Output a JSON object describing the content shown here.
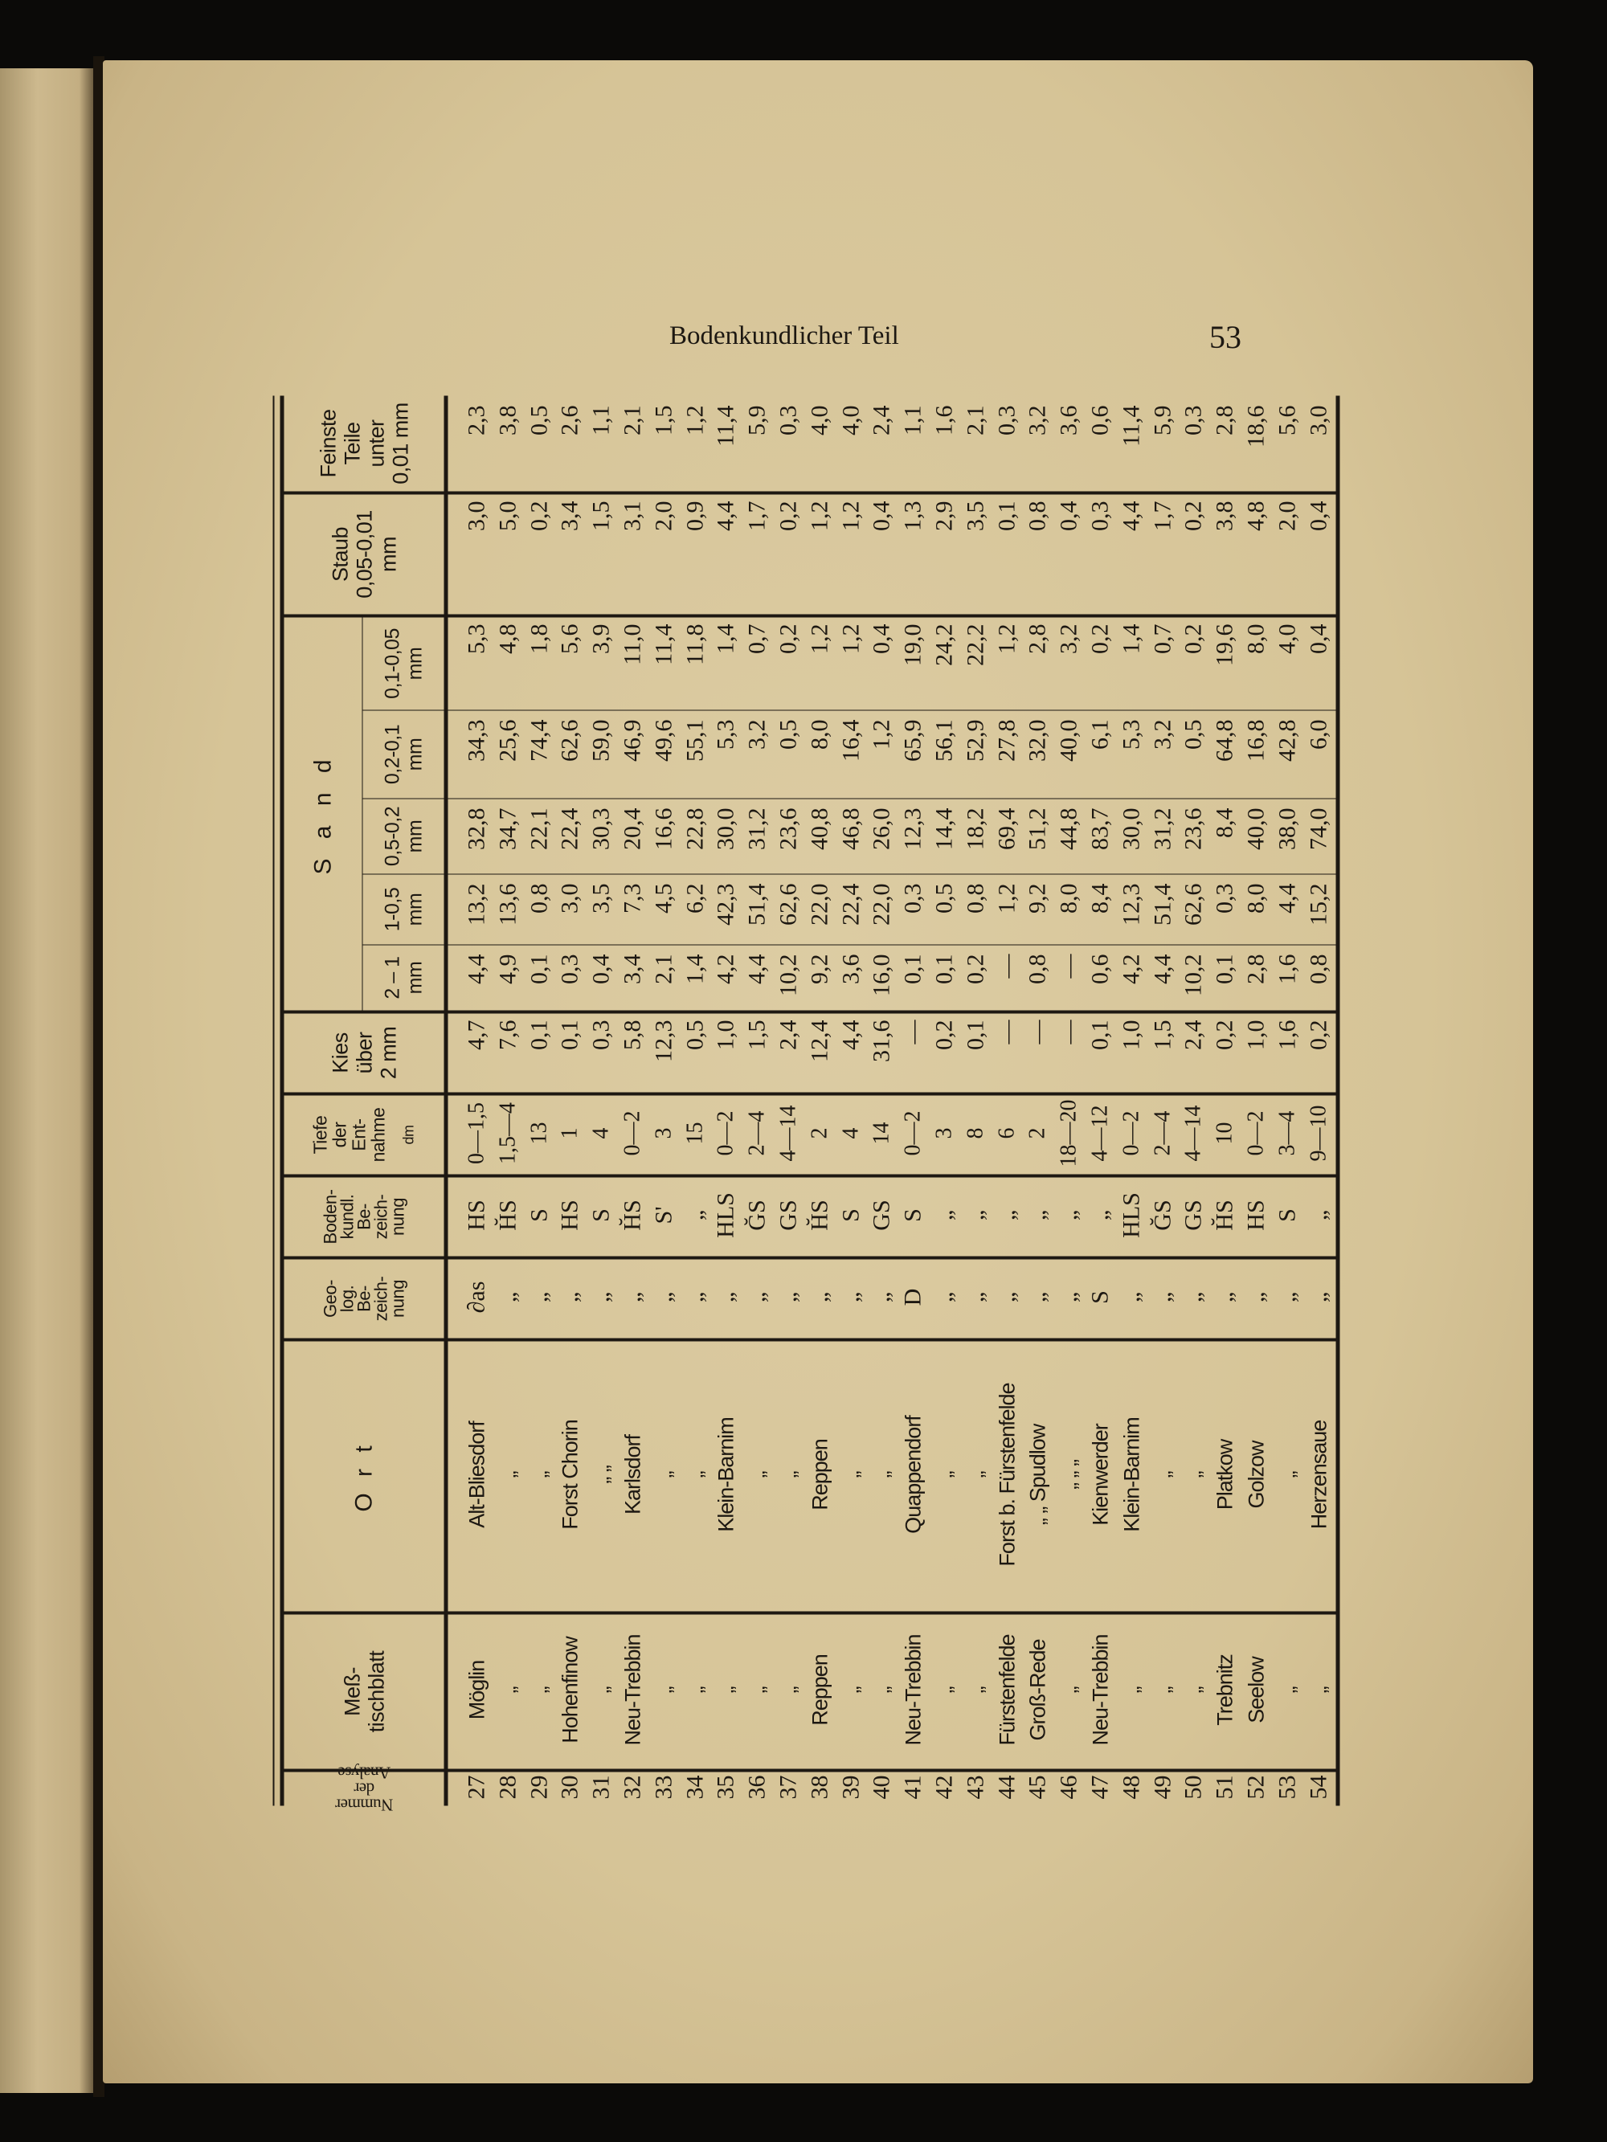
{
  "running_head": "Bodenkundlicher Teil",
  "page_number": "53",
  "table": {
    "headers": {
      "nummer": "Nummer\nder Analyse",
      "blatt": "Meß-\ntischblatt",
      "ort": "O r t",
      "geolog": "Geo-\nlog.\nBe-\nzeich-\nnung",
      "boden": "Boden-\nkundl.\nBe-\nzeich-\nnung",
      "tiefe": "Tiefe\nder\nEnt-\nnahme",
      "tiefe_unit": "dm",
      "kies": "Kies\nüber\n2 mm",
      "sand": "S a n d",
      "sand_sub": [
        "2 – 1\nmm",
        "1-0,5\nmm",
        "0,5-0,2\nmm",
        "0,2-0,1\nmm",
        "0,1-0,05\nmm"
      ],
      "staub": "Staub\n0,05-0,01\nmm",
      "feinste": "Feinste\nTeile\nunter\n0,01 mm"
    },
    "rows": [
      {
        "nr": "27",
        "blatt": "Möglin",
        "ort": "Alt-Bliesdorf",
        "geo": "∂as",
        "boden": "HS",
        "tiefe": "0—1,5",
        "kies": "4,7",
        "s1": "4,4",
        "s2": "13,2",
        "s3": "32,8",
        "s4": "34,3",
        "s5": "5,3",
        "staub": "3,0",
        "feinste": "2,3"
      },
      {
        "nr": "28",
        "blatt": "„",
        "ort": "„",
        "geo": "„",
        "boden": "H̆S",
        "tiefe": "1,5—4",
        "kies": "7,6",
        "s1": "4,9",
        "s2": "13,6",
        "s3": "34,7",
        "s4": "25,6",
        "s5": "4,8",
        "staub": "5,0",
        "feinste": "3,8"
      },
      {
        "nr": "29",
        "blatt": "„",
        "ort": "„",
        "geo": "„",
        "boden": "S",
        "tiefe": "13",
        "kies": "0,1",
        "s1": "0,1",
        "s2": "0,8",
        "s3": "22,1",
        "s4": "74,4",
        "s5": "1,8",
        "staub": "0,2",
        "feinste": "0,5"
      },
      {
        "nr": "30",
        "blatt": "Hohenfinow",
        "ort": "Forst Chorin",
        "geo": "„",
        "boden": "HS",
        "tiefe": "1",
        "kies": "0,1",
        "s1": "0,3",
        "s2": "3,0",
        "s3": "22,4",
        "s4": "62,6",
        "s5": "5,6",
        "staub": "3,4",
        "feinste": "2,6"
      },
      {
        "nr": "31",
        "blatt": "„",
        "ort": "„  „",
        "geo": "„",
        "boden": "S",
        "tiefe": "4",
        "kies": "0,3",
        "s1": "0,4",
        "s2": "3,5",
        "s3": "30,3",
        "s4": "59,0",
        "s5": "3,9",
        "staub": "1,5",
        "feinste": "1,1"
      },
      {
        "nr": "32",
        "blatt": "Neu-Trebbin",
        "ort": "Karlsdorf",
        "geo": "„",
        "boden": "H̆S",
        "tiefe": "0—2",
        "kies": "5,8",
        "s1": "3,4",
        "s2": "7,3",
        "s3": "20,4",
        "s4": "46,9",
        "s5": "11,0",
        "staub": "3,1",
        "feinste": "2,1"
      },
      {
        "nr": "33",
        "blatt": "„",
        "ort": "„",
        "geo": "„",
        "boden": "S'",
        "tiefe": "3",
        "kies": "12,3",
        "s1": "2,1",
        "s2": "4,5",
        "s3": "16,6",
        "s4": "49,6",
        "s5": "11,4",
        "staub": "2,0",
        "feinste": "1,5"
      },
      {
        "nr": "34",
        "blatt": "„",
        "ort": "„",
        "geo": "„",
        "boden": "„",
        "tiefe": "15",
        "kies": "0,5",
        "s1": "1,4",
        "s2": "6,2",
        "s3": "22,8",
        "s4": "55,1",
        "s5": "11,8",
        "staub": "0,9",
        "feinste": "1,2"
      },
      {
        "nr": "35",
        "blatt": "„",
        "ort": "Klein-Barnim",
        "geo": "„",
        "boden": "HLS",
        "tiefe": "0—2",
        "kies": "1,0",
        "s1": "4,2",
        "s2": "42,3",
        "s3": "30,0",
        "s4": "5,3",
        "s5": "1,4",
        "staub": "4,4",
        "feinste": "11,4"
      },
      {
        "nr": "36",
        "blatt": "„",
        "ort": "„",
        "geo": "„",
        "boden": "ĞS",
        "tiefe": "2—4",
        "kies": "1,5",
        "s1": "4,4",
        "s2": "51,4",
        "s3": "31,2",
        "s4": "3,2",
        "s5": "0,7",
        "staub": "1,7",
        "feinste": "5,9"
      },
      {
        "nr": "37",
        "blatt": "„",
        "ort": "„",
        "geo": "„",
        "boden": "GS",
        "tiefe": "4—14",
        "kies": "2,4",
        "s1": "10,2",
        "s2": "62,6",
        "s3": "23,6",
        "s4": "0,5",
        "s5": "0,2",
        "staub": "0,2",
        "feinste": "0,3"
      },
      {
        "nr": "38",
        "blatt": "Reppen",
        "ort": "Reppen",
        "geo": "„",
        "boden": "H̆S",
        "tiefe": "2",
        "kies": "12,4",
        "s1": "9,2",
        "s2": "22,0",
        "s3": "40,8",
        "s4": "8,0",
        "s5": "1,2",
        "staub": "1,2",
        "feinste": "4,0"
      },
      {
        "nr": "39",
        "blatt": "„",
        "ort": "„",
        "geo": "„",
        "boden": "S",
        "tiefe": "4",
        "kies": "4,4",
        "s1": "3,6",
        "s2": "22,4",
        "s3": "46,8",
        "s4": "16,4",
        "s5": "1,2",
        "staub": "1,2",
        "feinste": "4,0"
      },
      {
        "nr": "40",
        "blatt": "„",
        "ort": "„",
        "geo": "„",
        "boden": "GS",
        "tiefe": "14",
        "kies": "31,6",
        "s1": "16,0",
        "s2": "22,0",
        "s3": "26,0",
        "s4": "1,2",
        "s5": "0,4",
        "staub": "0,4",
        "feinste": "2,4"
      },
      {
        "nr": "41",
        "blatt": "Neu-Trebbin",
        "ort": "Quappendorf",
        "geo": "D",
        "boden": "S",
        "tiefe": "0—2",
        "kies": "—",
        "s1": "0,1",
        "s2": "0,3",
        "s3": "12,3",
        "s4": "65,9",
        "s5": "19,0",
        "staub": "1,3",
        "feinste": "1,1"
      },
      {
        "nr": "42",
        "blatt": "„",
        "ort": "„",
        "geo": "„",
        "boden": "„",
        "tiefe": "3",
        "kies": "0,2",
        "s1": "0,1",
        "s2": "0,5",
        "s3": "14,4",
        "s4": "56,1",
        "s5": "24,2",
        "staub": "2,9",
        "feinste": "1,6"
      },
      {
        "nr": "43",
        "blatt": "„",
        "ort": "„",
        "geo": "„",
        "boden": "„",
        "tiefe": "8",
        "kies": "0,1",
        "s1": "0,2",
        "s2": "0,8",
        "s3": "18,2",
        "s4": "52,9",
        "s5": "22,2",
        "staub": "3,5",
        "feinste": "2,1"
      },
      {
        "nr": "44",
        "blatt": "Fürstenfelde",
        "ort": "Forst b. Fürstenfelde",
        "geo": "„",
        "boden": "„",
        "tiefe": "6",
        "kies": "—",
        "s1": "—",
        "s2": "1,2",
        "s3": "69,4",
        "s4": "27,8",
        "s5": "1,2",
        "staub": "0,1",
        "feinste": "0,3"
      },
      {
        "nr": "45",
        "blatt": "Groß-Rede",
        "ort": "„  „  Spudlow",
        "geo": "„",
        "boden": "„",
        "tiefe": "2",
        "kies": "—",
        "s1": "0,8",
        "s2": "9,2",
        "s3": "51,2",
        "s4": "32,0",
        "s5": "2,8",
        "staub": "0,8",
        "feinste": "3,2"
      },
      {
        "nr": "46",
        "blatt": "„",
        "ort": "„  „  „",
        "geo": "„",
        "boden": "„",
        "tiefe": "18—20",
        "kies": "—",
        "s1": "—",
        "s2": "8,0",
        "s3": "44,8",
        "s4": "40,0",
        "s5": "3,2",
        "staub": "0,4",
        "feinste": "3,6"
      },
      {
        "nr": "47",
        "blatt": "Neu-Trebbin",
        "ort": "Kienwerder",
        "geo": "S",
        "boden": "„",
        "tiefe": "4—12",
        "kies": "0,1",
        "s1": "0,6",
        "s2": "8,4",
        "s3": "83,7",
        "s4": "6,1",
        "s5": "0,2",
        "staub": "0,3",
        "feinste": "0,6"
      },
      {
        "nr": "48",
        "blatt": "„",
        "ort": "Klein-Barnim",
        "geo": "„",
        "boden": "HLS",
        "tiefe": "0—2",
        "kies": "1,0",
        "s1": "4,2",
        "s2": "12,3",
        "s3": "30,0",
        "s4": "5,3",
        "s5": "1,4",
        "staub": "4,4",
        "feinste": "11,4"
      },
      {
        "nr": "49",
        "blatt": "„",
        "ort": "„",
        "geo": "„",
        "boden": "ĞS",
        "tiefe": "2—4",
        "kies": "1,5",
        "s1": "4,4",
        "s2": "51,4",
        "s3": "31,2",
        "s4": "3,2",
        "s5": "0,7",
        "staub": "1,7",
        "feinste": "5,9"
      },
      {
        "nr": "50",
        "blatt": "„",
        "ort": "„",
        "geo": "„",
        "boden": "GS",
        "tiefe": "4—14",
        "kies": "2,4",
        "s1": "10,2",
        "s2": "62,6",
        "s3": "23,6",
        "s4": "0,5",
        "s5": "0,2",
        "staub": "0,2",
        "feinste": "0,3"
      },
      {
        "nr": "51",
        "blatt": "Trebnitz",
        "ort": "Platkow",
        "geo": "„",
        "boden": "H̆S",
        "tiefe": "10",
        "kies": "0,2",
        "s1": "0,1",
        "s2": "0,3",
        "s3": "8,4",
        "s4": "64,8",
        "s5": "19,6",
        "staub": "3,8",
        "feinste": "2,8"
      },
      {
        "nr": "52",
        "blatt": "Seelow",
        "ort": "Golzow",
        "geo": "„",
        "boden": "HS",
        "tiefe": "0—2",
        "kies": "1,0",
        "s1": "2,8",
        "s2": "8,0",
        "s3": "40,0",
        "s4": "16,8",
        "s5": "8,0",
        "staub": "4,8",
        "feinste": "18,6"
      },
      {
        "nr": "53",
        "blatt": "„",
        "ort": "„",
        "geo": "„",
        "boden": "S",
        "tiefe": "3—4",
        "kies": "1,6",
        "s1": "1,6",
        "s2": "4,4",
        "s3": "38,0",
        "s4": "42,8",
        "s5": "4,0",
        "staub": "2,0",
        "feinste": "5,6"
      },
      {
        "nr": "54",
        "blatt": "„",
        "ort": "Herzensaue",
        "geo": "„",
        "boden": "„",
        "tiefe": "9—10",
        "kies": "0,2",
        "s1": "0,8",
        "s2": "15,2",
        "s3": "74,0",
        "s4": "6,0",
        "s5": "0,4",
        "staub": "0,4",
        "feinste": "3,0"
      }
    ]
  }
}
